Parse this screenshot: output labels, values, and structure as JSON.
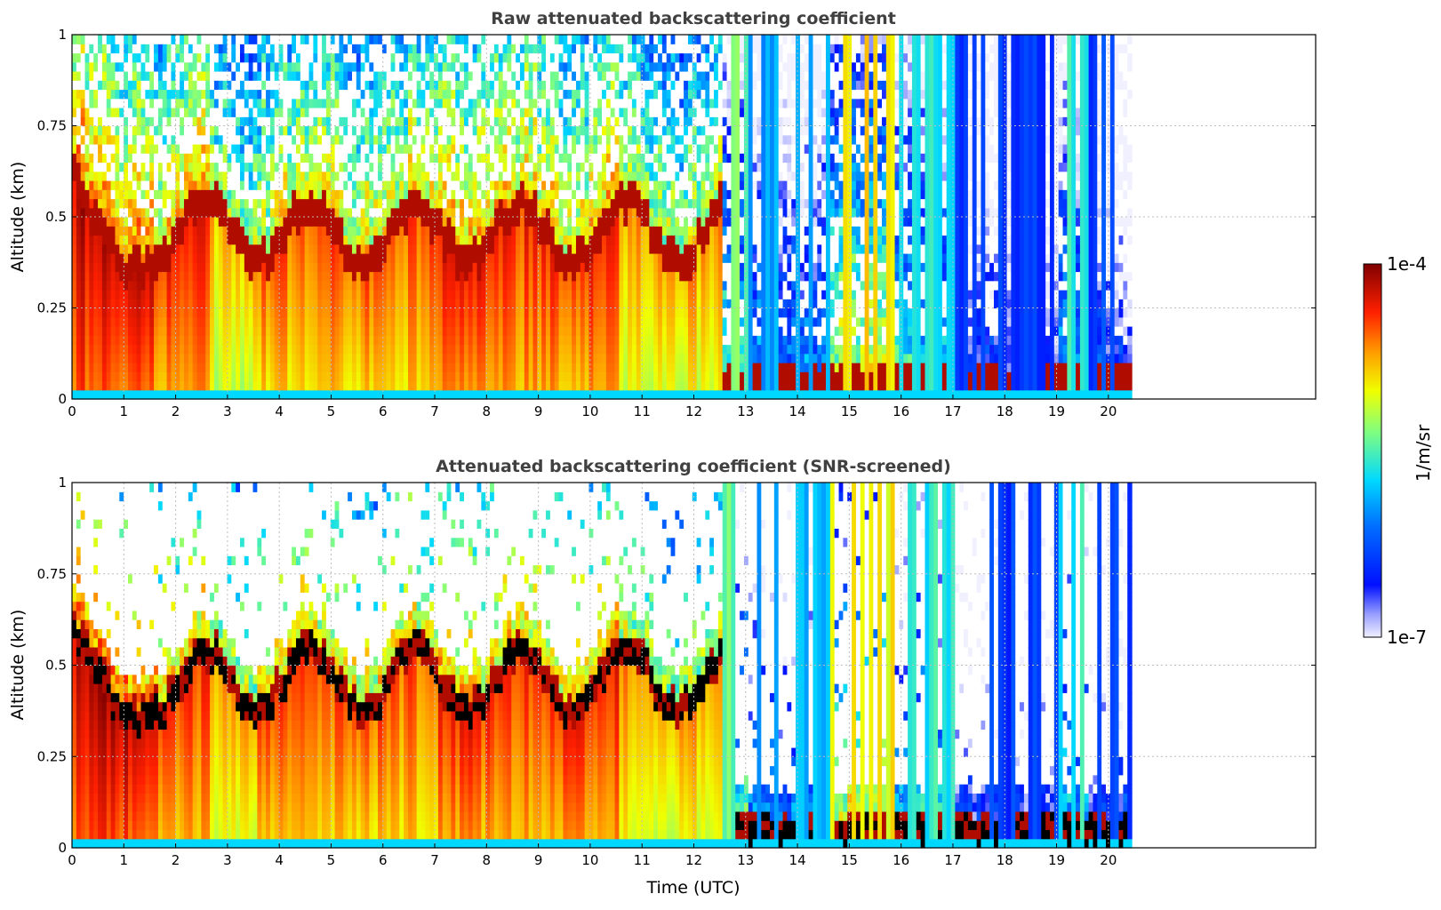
{
  "colors": {
    "title": "#404040",
    "grid": "#bdbdbd",
    "colormap": [
      "#eeeeff",
      "#0000ff",
      "#00c8ff",
      "#e6ff00",
      "#ff0000",
      "#800000"
    ],
    "screened_overflow": "#000000"
  },
  "chart_data": [
    {
      "id": "raw",
      "type": "heatmap",
      "title": "Raw attenuated backscattering coefficient",
      "xlabel": "",
      "ylabel": "Altitude (km)",
      "xlim": [
        0,
        24
      ],
      "ylim": [
        0,
        1
      ],
      "x_data_end": 20.45,
      "xticks": [
        "0",
        "1",
        "2",
        "3",
        "4",
        "5",
        "6",
        "7",
        "8",
        "9",
        "10",
        "11",
        "12",
        "13",
        "14",
        "15",
        "16",
        "17",
        "18",
        "19",
        "20"
      ],
      "yticks": [
        "0",
        "0.25",
        "0.5",
        "0.75",
        "1"
      ],
      "grid": true,
      "screened": false
    },
    {
      "id": "snr",
      "type": "heatmap",
      "title": "Attenuated backscattering coefficient (SNR-screened)",
      "xlabel": "Time (UTC)",
      "ylabel": "Altitude (km)",
      "xlim": [
        0,
        24
      ],
      "ylim": [
        0,
        1
      ],
      "x_data_end": 20.45,
      "xticks": [
        "0",
        "1",
        "2",
        "3",
        "4",
        "5",
        "6",
        "7",
        "8",
        "9",
        "10",
        "11",
        "12",
        "13",
        "14",
        "15",
        "16",
        "17",
        "18",
        "19",
        "20"
      ],
      "yticks": [
        "0",
        "0.25",
        "0.5",
        "0.75",
        "1"
      ],
      "grid": true,
      "screened": true
    }
  ],
  "colorbar": {
    "label": "1/m/sr",
    "max_label": "1e-4",
    "min_label": "1e-7",
    "scale": "log",
    "range": [
      1e-07,
      0.0001
    ]
  }
}
